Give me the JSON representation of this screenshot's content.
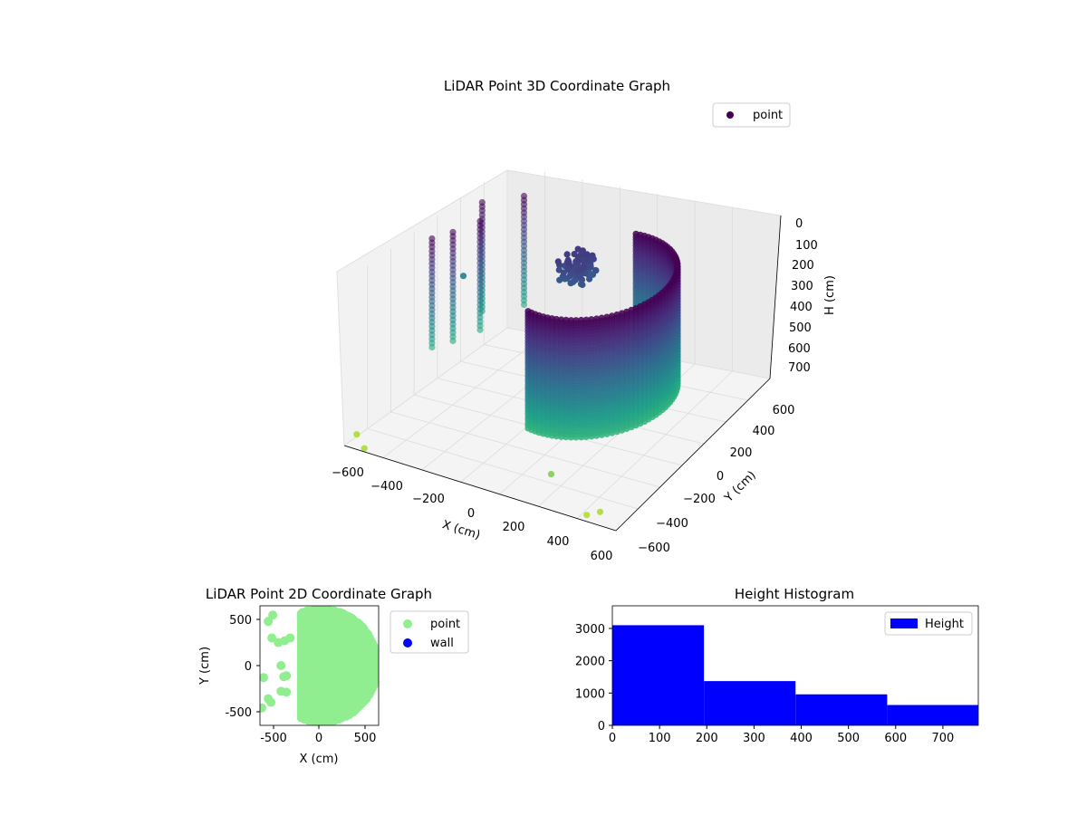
{
  "figure": {
    "background": "#ffffff"
  },
  "chart_data": [
    {
      "type": "scatter",
      "projection": "3d",
      "title": "LiDAR Point 3D Coordinate Graph",
      "xlabel": "X (cm)",
      "ylabel": "Y (cm)",
      "zlabel": "H (cm)",
      "xlim": [
        -650,
        650
      ],
      "ylim": [
        -650,
        650
      ],
      "zlim": [
        780,
        0
      ],
      "x_ticks": [
        "−600",
        "−400",
        "−200",
        "0",
        "200",
        "400",
        "600"
      ],
      "y_ticks": [
        "−600",
        "−400",
        "−200",
        "0",
        "200",
        "400",
        "600"
      ],
      "z_ticks": [
        "0",
        "100",
        "200",
        "300",
        "400",
        "500",
        "600",
        "700"
      ],
      "grid": true,
      "colormap": "viridis",
      "legend": {
        "placement": "upper-right",
        "entries": [
          {
            "label": "point",
            "color": "#440154"
          }
        ]
      },
      "series": [
        {
          "name": "point",
          "description": "wall ring",
          "shape": "ring",
          "center": [
            300,
            0
          ],
          "radius": 310,
          "angle_range_deg": [
            -100,
            100
          ],
          "h_range": [
            0,
            560
          ]
        },
        {
          "name": "point",
          "description": "cluster",
          "shape": "blob",
          "center": [
            -130,
            350
          ],
          "h_range": [
            150,
            260
          ]
        },
        {
          "name": "point",
          "description": "left wall fragments",
          "shape": "columns",
          "x": [
            -560,
            -520,
            -480,
            -560,
            -450
          ],
          "y": [
            -100,
            0,
            150,
            300,
            450
          ],
          "h_range": [
            0,
            520
          ]
        }
      ],
      "outliers": [
        {
          "x": -650,
          "y": -550,
          "h": 770
        },
        {
          "x": -560,
          "y": -640,
          "h": 770
        },
        {
          "x": 520,
          "y": -560,
          "h": 770
        },
        {
          "x": 480,
          "y": -600,
          "h": 780
        },
        {
          "x": 250,
          "y": -500,
          "h": 700
        },
        {
          "x": -650,
          "y": 300,
          "h": 380
        }
      ]
    },
    {
      "type": "scatter",
      "title": "LiDAR Point 2D Coordinate Graph",
      "xlabel": "X (cm)",
      "ylabel": "Y (cm)",
      "xlim": [
        -650,
        650
      ],
      "ylim": [
        -650,
        650
      ],
      "x_ticks": [
        -500,
        0,
        500
      ],
      "y_ticks": [
        -500,
        0,
        500
      ],
      "grid": false,
      "legend": {
        "placement": "outside-right",
        "entries": [
          {
            "label": "point",
            "color": "#90ee90"
          },
          {
            "label": "wall",
            "color": "#0000ff"
          }
        ]
      },
      "series": [
        {
          "name": "point",
          "color": "#90ee90",
          "shape": "disc",
          "center": [
            20,
            0
          ],
          "radius": 620,
          "left_edge_x": -200
        },
        {
          "name": "point",
          "color": "#90ee90",
          "points": [
            [
              -520,
              300
            ],
            [
              -510,
              550
            ],
            [
              -560,
              480
            ],
            [
              -450,
              250
            ],
            [
              -380,
              270
            ],
            [
              -320,
              300
            ],
            [
              -420,
              0
            ],
            [
              -360,
              -110
            ],
            [
              -390,
              -120
            ],
            [
              -610,
              -130
            ],
            [
              -420,
              -280
            ],
            [
              -360,
              -290
            ],
            [
              -630,
              -460
            ],
            [
              -530,
              -400
            ],
            [
              -560,
              -360
            ]
          ]
        },
        {
          "name": "wall",
          "color": "#0000ff",
          "points": []
        }
      ]
    },
    {
      "type": "bar",
      "subtype": "histogram",
      "title": "Height Histogram",
      "xlabel": "",
      "ylabel": "",
      "xlim": [
        0,
        775
      ],
      "ylim": [
        0,
        3700
      ],
      "x_ticks": [
        0,
        100,
        200,
        300,
        400,
        500,
        600,
        700
      ],
      "y_ticks": [
        0,
        1000,
        2000,
        3000
      ],
      "bins": [
        {
          "start": 0,
          "end": 194,
          "count": 3100
        },
        {
          "start": 194,
          "end": 388,
          "count": 1370
        },
        {
          "start": 388,
          "end": 582,
          "count": 960
        },
        {
          "start": 582,
          "end": 775,
          "count": 630
        }
      ],
      "color": "#0000ff",
      "legend": {
        "placement": "upper-right",
        "entries": [
          {
            "label": "Height",
            "color": "#0000ff"
          }
        ]
      }
    }
  ]
}
